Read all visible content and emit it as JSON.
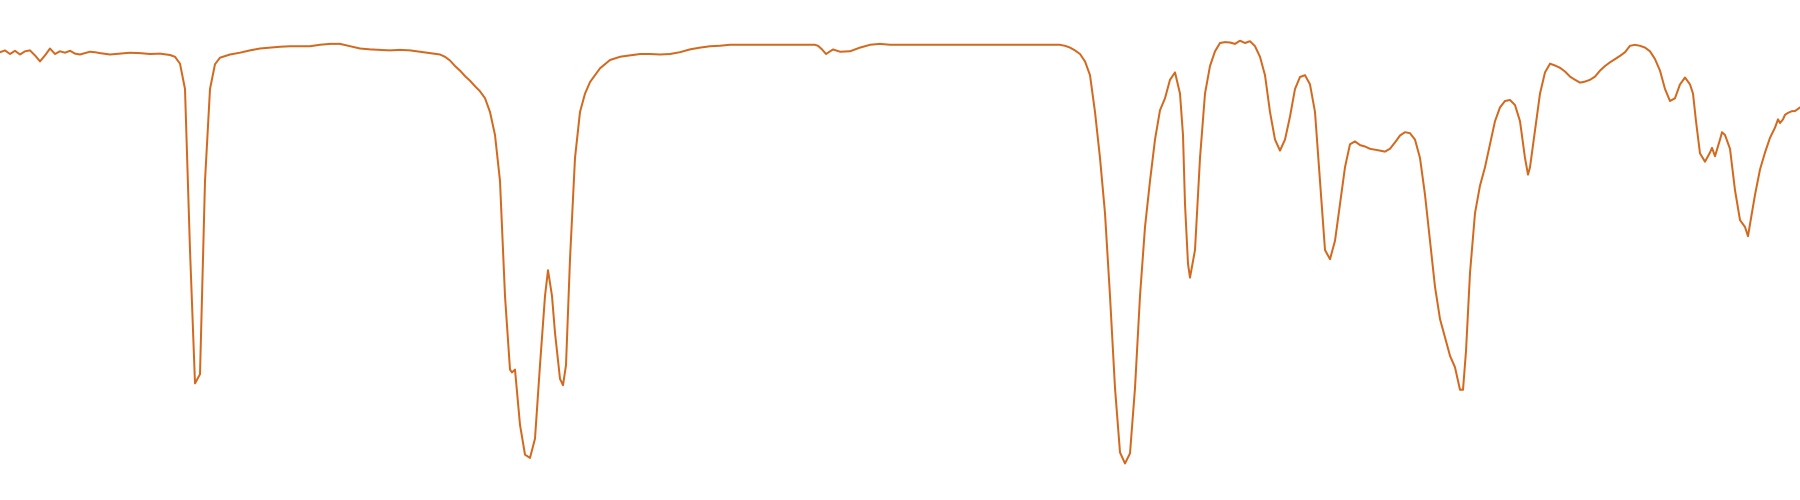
{
  "chart_data": {
    "type": "line",
    "title": "",
    "xlabel": "",
    "ylabel": "",
    "grid": false,
    "legend": "none",
    "axes_visible": false,
    "xlim": [
      0,
      1800
    ],
    "ylim": [
      0,
      100
    ],
    "series": [
      {
        "color": "#D2691E",
        "points": [
          [
            0,
            93
          ],
          [
            5,
            93.4
          ],
          [
            10,
            92.6
          ],
          [
            15,
            93.3
          ],
          [
            20,
            92.5
          ],
          [
            25,
            93.2
          ],
          [
            30,
            93.4
          ],
          [
            35,
            92.3
          ],
          [
            40,
            91
          ],
          [
            45,
            92.3
          ],
          [
            50,
            93.8
          ],
          [
            55,
            92.6
          ],
          [
            60,
            93.2
          ],
          [
            65,
            92.9
          ],
          [
            70,
            93.3
          ],
          [
            75,
            92.7
          ],
          [
            80,
            92.5
          ],
          [
            90,
            93.1
          ],
          [
            95,
            93
          ],
          [
            100,
            92.8
          ],
          [
            110,
            92.5
          ],
          [
            120,
            92.7
          ],
          [
            130,
            92.9
          ],
          [
            140,
            92.8
          ],
          [
            150,
            92.6
          ],
          [
            160,
            92.7
          ],
          [
            170,
            92.4
          ],
          [
            175,
            92
          ],
          [
            180,
            90.5
          ],
          [
            185,
            85
          ],
          [
            190,
            50
          ],
          [
            195,
            21
          ],
          [
            200,
            23
          ],
          [
            205,
            65
          ],
          [
            210,
            85
          ],
          [
            215,
            90.4
          ],
          [
            220,
            91.8
          ],
          [
            230,
            92.5
          ],
          [
            240,
            92.9
          ],
          [
            250,
            93.4
          ],
          [
            260,
            93.8
          ],
          [
            270,
            94
          ],
          [
            280,
            94.2
          ],
          [
            290,
            94.3
          ],
          [
            300,
            94.3
          ],
          [
            310,
            94.3
          ],
          [
            320,
            94.6
          ],
          [
            330,
            94.8
          ],
          [
            340,
            94.8
          ],
          [
            350,
            94.3
          ],
          [
            360,
            93.8
          ],
          [
            370,
            93.6
          ],
          [
            380,
            93.5
          ],
          [
            390,
            93.4
          ],
          [
            400,
            93.5
          ],
          [
            410,
            93.4
          ],
          [
            420,
            93.1
          ],
          [
            430,
            92.8
          ],
          [
            440,
            92.5
          ],
          [
            445,
            92
          ],
          [
            450,
            91.2
          ],
          [
            455,
            90
          ],
          [
            460,
            89
          ],
          [
            465,
            87.8
          ],
          [
            470,
            86.8
          ],
          [
            475,
            85.6
          ],
          [
            480,
            84.5
          ],
          [
            485,
            83
          ],
          [
            490,
            80
          ],
          [
            495,
            75
          ],
          [
            500,
            65
          ],
          [
            505,
            40
          ],
          [
            510,
            24
          ],
          [
            512,
            23.4
          ],
          [
            515,
            24
          ],
          [
            520,
            12
          ],
          [
            525,
            5.5
          ],
          [
            530,
            4.8
          ],
          [
            535,
            9
          ],
          [
            540,
            25
          ],
          [
            545,
            40
          ],
          [
            548,
            45.6
          ],
          [
            552,
            40
          ],
          [
            555,
            32
          ],
          [
            560,
            22
          ],
          [
            563,
            20.6
          ],
          [
            566,
            25
          ],
          [
            570,
            48
          ],
          [
            575,
            70
          ],
          [
            580,
            80
          ],
          [
            585,
            84
          ],
          [
            590,
            86.5
          ],
          [
            600,
            89.5
          ],
          [
            610,
            91.3
          ],
          [
            620,
            92
          ],
          [
            630,
            92.3
          ],
          [
            640,
            92.6
          ],
          [
            650,
            92.6
          ],
          [
            660,
            92.5
          ],
          [
            670,
            92.6
          ],
          [
            680,
            93
          ],
          [
            690,
            93.6
          ],
          [
            700,
            94
          ],
          [
            710,
            94.3
          ],
          [
            720,
            94.4
          ],
          [
            730,
            94.6
          ],
          [
            740,
            94.6
          ],
          [
            750,
            94.6
          ],
          [
            760,
            94.6
          ],
          [
            770,
            94.6
          ],
          [
            780,
            94.6
          ],
          [
            790,
            94.6
          ],
          [
            800,
            94.6
          ],
          [
            810,
            94.6
          ],
          [
            815,
            94.6
          ],
          [
            818,
            94.4
          ],
          [
            822,
            93.6
          ],
          [
            826,
            92.6
          ],
          [
            828,
            92.9
          ],
          [
            833,
            93.6
          ],
          [
            840,
            93.1
          ],
          [
            850,
            93.2
          ],
          [
            860,
            94
          ],
          [
            870,
            94.6
          ],
          [
            880,
            94.8
          ],
          [
            890,
            94.6
          ],
          [
            900,
            94.6
          ],
          [
            910,
            94.6
          ],
          [
            920,
            94.6
          ],
          [
            930,
            94.6
          ],
          [
            940,
            94.6
          ],
          [
            950,
            94.6
          ],
          [
            960,
            94.6
          ],
          [
            970,
            94.6
          ],
          [
            980,
            94.6
          ],
          [
            990,
            94.6
          ],
          [
            1000,
            94.6
          ],
          [
            1010,
            94.6
          ],
          [
            1020,
            94.6
          ],
          [
            1030,
            94.6
          ],
          [
            1040,
            94.6
          ],
          [
            1050,
            94.6
          ],
          [
            1060,
            94.6
          ],
          [
            1065,
            94.4
          ],
          [
            1070,
            94
          ],
          [
            1075,
            93.4
          ],
          [
            1080,
            92.6
          ],
          [
            1085,
            91
          ],
          [
            1090,
            88
          ],
          [
            1095,
            80
          ],
          [
            1100,
            70
          ],
          [
            1105,
            58
          ],
          [
            1110,
            40
          ],
          [
            1115,
            20
          ],
          [
            1120,
            6
          ],
          [
            1125,
            3.6
          ],
          [
            1130,
            5.8
          ],
          [
            1135,
            20
          ],
          [
            1140,
            40
          ],
          [
            1145,
            55
          ],
          [
            1150,
            65
          ],
          [
            1155,
            74
          ],
          [
            1160,
            80.4
          ],
          [
            1165,
            83
          ],
          [
            1170,
            87
          ],
          [
            1175,
            88.6
          ],
          [
            1180,
            84
          ],
          [
            1183,
            75
          ],
          [
            1185,
            60
          ],
          [
            1188,
            47
          ],
          [
            1190,
            44
          ],
          [
            1195,
            50
          ],
          [
            1200,
            70
          ],
          [
            1205,
            84
          ],
          [
            1210,
            90
          ],
          [
            1215,
            93.2
          ],
          [
            1220,
            95
          ],
          [
            1225,
            95.2
          ],
          [
            1230,
            95.1
          ],
          [
            1235,
            94.8
          ],
          [
            1240,
            95.5
          ],
          [
            1245,
            95
          ],
          [
            1250,
            95.4
          ],
          [
            1255,
            94.3
          ],
          [
            1260,
            92
          ],
          [
            1265,
            88
          ],
          [
            1270,
            80
          ],
          [
            1275,
            74
          ],
          [
            1280,
            71.6
          ],
          [
            1285,
            74
          ],
          [
            1290,
            79
          ],
          [
            1295,
            85
          ],
          [
            1300,
            87.6
          ],
          [
            1305,
            88
          ],
          [
            1310,
            86
          ],
          [
            1315,
            80
          ],
          [
            1320,
            65
          ],
          [
            1325,
            50
          ],
          [
            1330,
            48
          ],
          [
            1335,
            52
          ],
          [
            1340,
            60
          ],
          [
            1345,
            68
          ],
          [
            1350,
            73
          ],
          [
            1355,
            73.6
          ],
          [
            1360,
            72.8
          ],
          [
            1365,
            72.5
          ],
          [
            1370,
            72
          ],
          [
            1375,
            71.8
          ],
          [
            1380,
            71.6
          ],
          [
            1385,
            71.4
          ],
          [
            1390,
            72
          ],
          [
            1395,
            73.4
          ],
          [
            1400,
            74.9
          ],
          [
            1405,
            75.6
          ],
          [
            1410,
            75.4
          ],
          [
            1415,
            74
          ],
          [
            1420,
            70
          ],
          [
            1425,
            62
          ],
          [
            1430,
            52
          ],
          [
            1435,
            42
          ],
          [
            1440,
            35
          ],
          [
            1445,
            31
          ],
          [
            1450,
            27
          ],
          [
            1455,
            24.5
          ],
          [
            1460,
            19.6
          ],
          [
            1463,
            19.6
          ],
          [
            1466,
            28
          ],
          [
            1470,
            45
          ],
          [
            1475,
            58
          ],
          [
            1480,
            64
          ],
          [
            1485,
            68
          ],
          [
            1490,
            73
          ],
          [
            1495,
            78
          ],
          [
            1500,
            81
          ],
          [
            1505,
            82.4
          ],
          [
            1510,
            82.6
          ],
          [
            1515,
            81.5
          ],
          [
            1520,
            78
          ],
          [
            1525,
            70
          ],
          [
            1528,
            66.4
          ],
          [
            1530,
            68
          ],
          [
            1535,
            76
          ],
          [
            1540,
            84
          ],
          [
            1545,
            88.6
          ],
          [
            1550,
            90.5
          ],
          [
            1555,
            90.1
          ],
          [
            1560,
            89.6
          ],
          [
            1565,
            88.8
          ],
          [
            1570,
            87.7
          ],
          [
            1575,
            87
          ],
          [
            1580,
            86.4
          ],
          [
            1585,
            86.6
          ],
          [
            1590,
            87
          ],
          [
            1595,
            87.7
          ],
          [
            1600,
            89
          ],
          [
            1605,
            90
          ],
          [
            1610,
            90.8
          ],
          [
            1615,
            91.5
          ],
          [
            1620,
            92.2
          ],
          [
            1625,
            93
          ],
          [
            1630,
            94.4
          ],
          [
            1635,
            94.6
          ],
          [
            1640,
            94.4
          ],
          [
            1645,
            94
          ],
          [
            1650,
            93.2
          ],
          [
            1655,
            91.5
          ],
          [
            1660,
            89
          ],
          [
            1665,
            85
          ],
          [
            1670,
            82.4
          ],
          [
            1675,
            83
          ],
          [
            1680,
            86
          ],
          [
            1685,
            87.5
          ],
          [
            1690,
            86
          ],
          [
            1693,
            84
          ],
          [
            1696,
            78
          ],
          [
            1700,
            71
          ],
          [
            1705,
            69.2
          ],
          [
            1710,
            71.2
          ],
          [
            1712,
            72.2
          ],
          [
            1715,
            70.4
          ],
          [
            1720,
            74
          ],
          [
            1722,
            75.6
          ],
          [
            1725,
            75
          ],
          [
            1730,
            72
          ],
          [
            1735,
            63
          ],
          [
            1740,
            56.5
          ],
          [
            1745,
            55
          ],
          [
            1748,
            53
          ],
          [
            1750,
            55.6
          ],
          [
            1755,
            62
          ],
          [
            1760,
            67.5
          ],
          [
            1765,
            71.2
          ],
          [
            1770,
            74.4
          ],
          [
            1775,
            76.6
          ],
          [
            1778,
            78.4
          ],
          [
            1780,
            77.6
          ],
          [
            1783,
            78.4
          ],
          [
            1785,
            79.4
          ],
          [
            1788,
            79.8
          ],
          [
            1792,
            80.2
          ],
          [
            1795,
            80.2
          ],
          [
            1800,
            81
          ]
        ]
      }
    ]
  }
}
